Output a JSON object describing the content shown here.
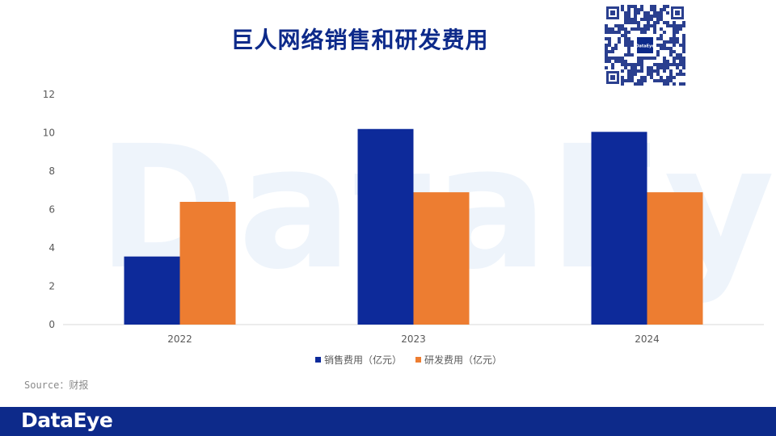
{
  "title": "巨人网络销售和研发费用",
  "source": "Source：财报",
  "logo": "DataEye",
  "watermark": "DataEye",
  "qr_logo": "DataEye",
  "colors": {
    "title": "#0d2a8a",
    "footer": "#0d2a8a",
    "series_1": "#0d2a9a",
    "series_2": "#ed7d31",
    "watermark": "#eef4fb"
  },
  "chart_data": {
    "type": "bar",
    "categories": [
      "2022",
      "2023",
      "2024"
    ],
    "series": [
      {
        "name": "销售费用（亿元）",
        "values": [
          3.55,
          10.2,
          10.05
        ]
      },
      {
        "name": "研发费用（亿元）",
        "values": [
          6.4,
          6.9,
          6.9
        ]
      }
    ],
    "y_ticks": [
      "0",
      "2",
      "4",
      "6",
      "8",
      "10",
      "12"
    ],
    "ylim": [
      0,
      12
    ],
    "grid": false,
    "legend": "bottom"
  }
}
